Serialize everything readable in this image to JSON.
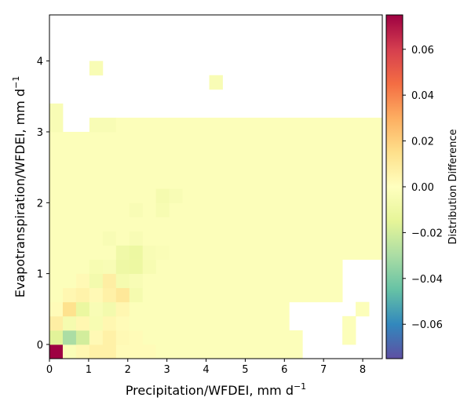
{
  "chart_data": {
    "type": "heatmap",
    "xlabel": "Precipitation/WFDEI,  mm d",
    "xlabel_sup": "−1",
    "ylabel": "Evapotranspiration/WFDEI,  mm d",
    "ylabel_sup": "−1",
    "xlim": [
      0,
      8.5
    ],
    "ylim": [
      -0.2,
      4.65
    ],
    "x_ticks": [
      0,
      1,
      2,
      3,
      4,
      5,
      6,
      7,
      8
    ],
    "x_tick_labels": [
      "0",
      "1",
      "2",
      "3",
      "4",
      "5",
      "6",
      "7",
      "8"
    ],
    "y_ticks": [
      0,
      1,
      2,
      3,
      4
    ],
    "y_tick_labels": [
      "0",
      "1",
      "2",
      "3",
      "4"
    ],
    "colorbar": {
      "label": "Distribution Difference",
      "range": [
        -0.075,
        0.075
      ],
      "ticks": [
        -0.06,
        -0.04,
        -0.02,
        0.0,
        0.02,
        0.04,
        0.06
      ],
      "tick_labels": [
        "−0.06",
        "−0.04",
        "−0.02",
        "0.00",
        "0.02",
        "0.04",
        "0.06"
      ],
      "colormap": "Spectral_r"
    },
    "grid": {
      "x_edges_start": 0,
      "x_step": 0.34,
      "n_cols": 25,
      "y_edges_start": -0.2,
      "y_step": 0.2,
      "n_rows": 24,
      "background_value": -0.002,
      "empty_value": null
    },
    "empty_cells": [
      [
        0,
        19
      ],
      [
        0,
        20
      ],
      [
        0,
        21
      ],
      [
        0,
        22
      ],
      [
        0,
        23
      ],
      [
        0,
        24
      ],
      [
        1,
        19
      ],
      [
        1,
        20
      ],
      [
        1,
        21
      ],
      [
        1,
        23
      ],
      [
        1,
        24
      ],
      [
        2,
        18
      ],
      [
        2,
        19
      ],
      [
        2,
        20
      ],
      [
        2,
        21
      ],
      [
        2,
        23
      ],
      [
        2,
        24
      ],
      [
        3,
        18
      ],
      [
        3,
        19
      ],
      [
        3,
        20
      ],
      [
        3,
        21
      ],
      [
        3,
        22
      ],
      [
        3,
        24
      ],
      [
        4,
        22
      ],
      [
        4,
        23
      ],
      [
        4,
        24
      ],
      [
        5,
        22
      ],
      [
        5,
        23
      ],
      [
        5,
        24
      ],
      [
        6,
        22
      ],
      [
        6,
        23
      ],
      [
        6,
        24
      ],
      [
        16,
        1
      ],
      [
        16,
        2
      ],
      [
        17,
        1
      ],
      [
        17,
        2
      ],
      [
        17,
        3
      ],
      [
        17,
        4
      ],
      [
        17,
        5
      ],
      [
        17,
        6
      ],
      [
        17,
        7
      ],
      [
        17,
        8
      ],
      [
        17,
        9
      ],
      [
        17,
        10
      ],
      [
        17,
        11
      ],
      [
        17,
        12
      ],
      [
        17,
        13
      ],
      [
        17,
        14
      ],
      [
        17,
        15
      ],
      [
        17,
        16
      ],
      [
        17,
        17
      ],
      [
        17,
        18
      ],
      [
        17,
        19
      ],
      [
        17,
        20
      ],
      [
        17,
        21
      ],
      [
        17,
        22
      ],
      [
        17,
        23
      ],
      [
        17,
        24
      ],
      [
        18,
        0
      ],
      [
        18,
        1
      ],
      [
        18,
        2
      ],
      [
        18,
        3
      ],
      [
        18,
        4
      ],
      [
        18,
        5
      ],
      [
        18,
        6
      ],
      [
        18,
        7
      ],
      [
        18,
        8
      ],
      [
        18,
        9
      ],
      [
        18,
        10
      ],
      [
        18,
        11
      ],
      [
        18,
        12
      ],
      [
        18,
        13
      ],
      [
        18,
        14
      ],
      [
        18,
        15
      ],
      [
        18,
        16
      ],
      [
        18,
        17
      ],
      [
        18,
        18
      ],
      [
        18,
        19
      ],
      [
        18,
        20
      ],
      [
        18,
        21
      ],
      [
        18,
        22
      ],
      [
        18,
        23
      ],
      [
        18,
        24
      ],
      [
        19,
        0
      ],
      [
        19,
        1
      ],
      [
        19,
        2
      ],
      [
        19,
        3
      ],
      [
        19,
        4
      ],
      [
        19,
        5
      ],
      [
        19,
        6
      ],
      [
        19,
        7
      ],
      [
        19,
        8
      ],
      [
        19,
        9
      ],
      [
        19,
        10
      ],
      [
        19,
        11
      ],
      [
        19,
        13
      ],
      [
        19,
        14
      ],
      [
        19,
        15
      ],
      [
        19,
        16
      ],
      [
        19,
        17
      ],
      [
        19,
        18
      ],
      [
        19,
        19
      ],
      [
        19,
        20
      ],
      [
        19,
        21
      ],
      [
        19,
        22
      ],
      [
        19,
        23
      ],
      [
        19,
        24
      ],
      [
        20,
        0
      ],
      [
        20,
        1
      ],
      [
        20,
        2
      ],
      [
        20,
        4
      ],
      [
        20,
        5
      ],
      [
        20,
        6
      ],
      [
        20,
        7
      ],
      [
        20,
        8
      ],
      [
        20,
        9
      ],
      [
        20,
        10
      ],
      [
        20,
        11
      ],
      [
        20,
        12
      ],
      [
        20,
        13
      ],
      [
        20,
        14
      ],
      [
        20,
        15
      ],
      [
        20,
        16
      ],
      [
        20,
        17
      ],
      [
        20,
        18
      ],
      [
        20,
        19
      ],
      [
        20,
        20
      ],
      [
        20,
        21
      ],
      [
        20,
        22
      ],
      [
        20,
        23
      ],
      [
        20,
        24
      ],
      [
        21,
        0
      ],
      [
        21,
        1
      ],
      [
        21,
        2
      ],
      [
        21,
        3
      ],
      [
        21,
        4
      ],
      [
        21,
        5
      ],
      [
        21,
        6
      ],
      [
        21,
        7
      ],
      [
        21,
        8
      ],
      [
        21,
        9
      ],
      [
        21,
        10
      ],
      [
        21,
        11
      ],
      [
        21,
        12
      ],
      [
        21,
        13
      ],
      [
        21,
        14
      ],
      [
        21,
        15
      ],
      [
        21,
        16
      ],
      [
        21,
        17
      ],
      [
        21,
        18
      ],
      [
        21,
        19
      ],
      [
        21,
        20
      ],
      [
        21,
        21
      ],
      [
        21,
        22
      ],
      [
        21,
        23
      ],
      [
        21,
        24
      ],
      [
        22,
        0
      ],
      [
        22,
        1
      ],
      [
        22,
        2
      ],
      [
        22,
        3
      ],
      [
        22,
        4
      ],
      [
        22,
        5
      ],
      [
        22,
        6
      ],
      [
        22,
        7
      ],
      [
        22,
        8
      ],
      [
        22,
        9
      ],
      [
        22,
        10
      ],
      [
        22,
        11
      ],
      [
        22,
        12
      ],
      [
        22,
        13
      ],
      [
        22,
        14
      ],
      [
        22,
        15
      ],
      [
        22,
        16
      ],
      [
        22,
        17
      ],
      [
        22,
        18
      ],
      [
        22,
        19
      ],
      [
        22,
        20
      ],
      [
        22,
        21
      ],
      [
        22,
        22
      ],
      [
        22,
        23
      ],
      [
        22,
        24
      ],
      [
        23,
        0
      ],
      [
        23,
        1
      ],
      [
        23,
        2
      ],
      [
        23,
        3
      ],
      [
        23,
        4
      ],
      [
        23,
        5
      ],
      [
        23,
        6
      ],
      [
        23,
        7
      ],
      [
        23,
        8
      ],
      [
        23,
        9
      ],
      [
        23,
        10
      ],
      [
        23,
        11
      ],
      [
        23,
        12
      ],
      [
        23,
        13
      ],
      [
        23,
        14
      ],
      [
        23,
        15
      ],
      [
        23,
        16
      ],
      [
        23,
        17
      ],
      [
        23,
        18
      ],
      [
        23,
        19
      ],
      [
        23,
        20
      ],
      [
        23,
        21
      ],
      [
        23,
        22
      ],
      [
        23,
        23
      ],
      [
        23,
        24
      ]
    ],
    "filled_cells": [
      {
        "row": 16,
        "col": 0,
        "value": -0.004
      },
      {
        "row": 16,
        "col": 3,
        "value": -0.004
      },
      {
        "row": 16,
        "col": 4,
        "value": -0.004
      },
      {
        "row": 17,
        "col": 0,
        "value": -0.004
      },
      {
        "row": 19,
        "col": 12,
        "value": -0.004
      },
      {
        "row": 20,
        "col": 3,
        "value": -0.004
      },
      {
        "row": 22,
        "col": 2,
        "value": -0.004
      },
      {
        "row": 23,
        "col": 8,
        "value": -0.004
      },
      {
        "row": 20,
        "col": 7,
        "value": -0.003
      },
      {
        "row": 22,
        "col": 6,
        "value": -0.003
      },
      {
        "row": 21,
        "col": 11,
        "value": -0.003
      },
      {
        "row": 19,
        "col": 13,
        "value": -0.003
      },
      {
        "row": 18,
        "col": 14,
        "value": -0.003
      },
      {
        "row": 0,
        "col": 0,
        "value": 0.075
      },
      {
        "row": 0,
        "col": 1,
        "value": -0.003
      },
      {
        "row": 0,
        "col": 2,
        "value": 0.004
      },
      {
        "row": 0,
        "col": 3,
        "value": 0.007
      },
      {
        "row": 0,
        "col": 4,
        "value": 0.007
      },
      {
        "row": 0,
        "col": 5,
        "value": 0.002
      },
      {
        "row": 0,
        "col": 6,
        "value": 0.002
      },
      {
        "row": 0,
        "col": 7,
        "value": 0.002
      },
      {
        "row": 1,
        "col": 0,
        "value": -0.016
      },
      {
        "row": 1,
        "col": 1,
        "value": -0.03
      },
      {
        "row": 1,
        "col": 2,
        "value": -0.02
      },
      {
        "row": 1,
        "col": 3,
        "value": 0.003
      },
      {
        "row": 1,
        "col": 4,
        "value": 0.007
      },
      {
        "row": 1,
        "col": 5,
        "value": 0.003
      },
      {
        "row": 1,
        "col": 6,
        "value": 0.002
      },
      {
        "row": 2,
        "col": 0,
        "value": 0.008
      },
      {
        "row": 2,
        "col": 1,
        "value": -0.006
      },
      {
        "row": 2,
        "col": 2,
        "value": 0.004
      },
      {
        "row": 2,
        "col": 3,
        "value": -0.005
      },
      {
        "row": 2,
        "col": 4,
        "value": 0.004
      },
      {
        "row": 2,
        "col": 5,
        "value": 0.002
      },
      {
        "row": 3,
        "col": 0,
        "value": 0.002
      },
      {
        "row": 3,
        "col": 1,
        "value": 0.014
      },
      {
        "row": 3,
        "col": 2,
        "value": -0.012
      },
      {
        "row": 3,
        "col": 3,
        "value": -0.004
      },
      {
        "row": 3,
        "col": 4,
        "value": -0.007
      },
      {
        "row": 3,
        "col": 5,
        "value": 0.004
      },
      {
        "row": 4,
        "col": 1,
        "value": 0.004
      },
      {
        "row": 4,
        "col": 2,
        "value": 0.006
      },
      {
        "row": 4,
        "col": 3,
        "value": 0.003
      },
      {
        "row": 4,
        "col": 4,
        "value": 0.007
      },
      {
        "row": 4,
        "col": 5,
        "value": 0.011
      },
      {
        "row": 4,
        "col": 6,
        "value": -0.006
      },
      {
        "row": 5,
        "col": 2,
        "value": 0.003
      },
      {
        "row": 5,
        "col": 3,
        "value": -0.007
      },
      {
        "row": 5,
        "col": 4,
        "value": 0.008
      },
      {
        "row": 5,
        "col": 5,
        "value": -0.006
      },
      {
        "row": 5,
        "col": 6,
        "value": -0.004
      },
      {
        "row": 6,
        "col": 3,
        "value": -0.005
      },
      {
        "row": 6,
        "col": 4,
        "value": -0.004
      },
      {
        "row": 6,
        "col": 5,
        "value": -0.01
      },
      {
        "row": 6,
        "col": 6,
        "value": -0.011
      },
      {
        "row": 6,
        "col": 7,
        "value": -0.005
      },
      {
        "row": 7,
        "col": 5,
        "value": -0.009
      },
      {
        "row": 7,
        "col": 6,
        "value": -0.011
      },
      {
        "row": 7,
        "col": 7,
        "value": -0.004
      },
      {
        "row": 7,
        "col": 8,
        "value": -0.003
      },
      {
        "row": 8,
        "col": 4,
        "value": -0.004
      },
      {
        "row": 8,
        "col": 6,
        "value": -0.004
      },
      {
        "row": 10,
        "col": 6,
        "value": -0.004
      },
      {
        "row": 10,
        "col": 8,
        "value": -0.005
      },
      {
        "row": 11,
        "col": 8,
        "value": -0.006
      },
      {
        "row": 11,
        "col": 9,
        "value": -0.004
      }
    ]
  }
}
